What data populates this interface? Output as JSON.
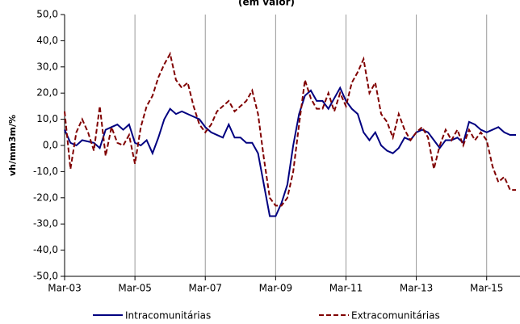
{
  "chart_data": {
    "type": "line",
    "title": "(em valor)",
    "y_label": "vh/mm3m/%",
    "categories": [
      "Mar-03",
      null,
      null,
      null,
      null,
      null,
      null,
      null,
      null,
      null,
      null,
      null,
      "Mar-05",
      null,
      null,
      null,
      null,
      null,
      null,
      null,
      null,
      null,
      null,
      null,
      "Mar-07",
      null,
      null,
      null,
      null,
      null,
      null,
      null,
      null,
      null,
      null,
      null,
      "Mar-09",
      null,
      null,
      null,
      null,
      null,
      null,
      null,
      null,
      null,
      null,
      null,
      "Mar-11",
      null,
      null,
      null,
      null,
      null,
      null,
      null,
      null,
      null,
      null,
      null,
      "Mar-13",
      null,
      null,
      null,
      null,
      null,
      null,
      null,
      null,
      null,
      null,
      null,
      "Mar-15",
      null,
      null,
      null,
      null,
      null
    ],
    "series": [
      {
        "name": "Intracomunitárias",
        "color": "#000080",
        "dash": false,
        "values": [
          6,
          1,
          0,
          2,
          1.5,
          1,
          -1,
          6,
          7,
          8,
          6,
          8,
          1,
          0,
          2,
          -3,
          3,
          10,
          14,
          12,
          13,
          12,
          11,
          10,
          7,
          5,
          4,
          3,
          8,
          3,
          3,
          1,
          1,
          -3,
          -15,
          -27,
          -27,
          -22,
          -15,
          0,
          12,
          19,
          21,
          17,
          17,
          14,
          18,
          22,
          17,
          14,
          12,
          5,
          2,
          5,
          0,
          -2,
          -3,
          -1,
          3,
          2,
          5,
          6,
          5,
          2,
          -1,
          2,
          2,
          3,
          1,
          9,
          8,
          6,
          5,
          6,
          7,
          5,
          4,
          4
        ]
      },
      {
        "name": "Extracomunitárias",
        "color": "#800000",
        "dash": true,
        "values": [
          13,
          -9,
          5,
          10,
          5,
          -2,
          15,
          -4,
          7,
          1,
          0,
          4,
          -7,
          7,
          15,
          19,
          26,
          31,
          35,
          25,
          22,
          24,
          15,
          8,
          5,
          8,
          13,
          15,
          17,
          13,
          15,
          17,
          21,
          12,
          -5,
          -20,
          -23,
          -23,
          -20,
          -10,
          8,
          25,
          18,
          14,
          14,
          20,
          13,
          20,
          15,
          24,
          28,
          33,
          20,
          24,
          12,
          9,
          3,
          12,
          6,
          2,
          5,
          7,
          3,
          -9,
          0,
          6,
          2,
          6,
          0,
          6,
          2,
          5,
          2,
          -8,
          -14,
          -12,
          -17,
          -17
        ]
      }
    ],
    "ylim": [
      -50,
      50
    ],
    "yticks": [
      {
        "value": -50,
        "label": "-50,0"
      },
      {
        "value": -40,
        "label": "-40,0"
      },
      {
        "value": -30,
        "label": "-30,0"
      },
      {
        "value": -20,
        "label": "-20,0"
      },
      {
        "value": -10,
        "label": "-10,0"
      },
      {
        "value": 0,
        "label": "0,0"
      },
      {
        "value": 10,
        "label": "10,0"
      },
      {
        "value": 20,
        "label": "20,0"
      },
      {
        "value": 30,
        "label": "30,0"
      },
      {
        "value": 40,
        "label": "40,0"
      },
      {
        "value": 50,
        "label": "50,0"
      }
    ],
    "grid": "x",
    "legend": "bottom"
  }
}
